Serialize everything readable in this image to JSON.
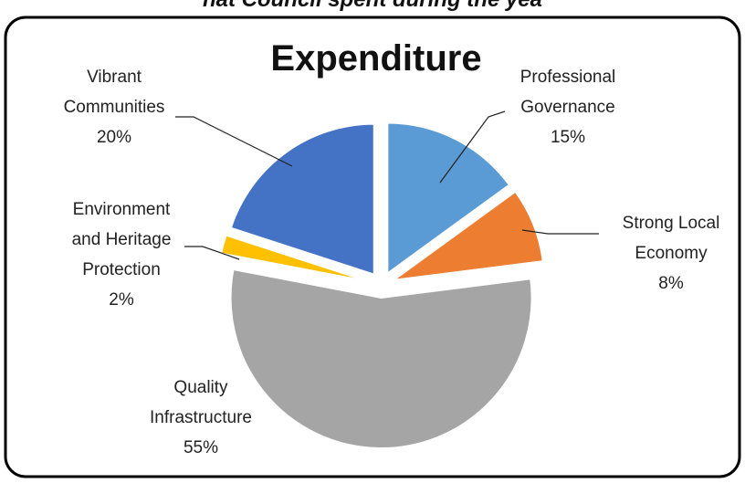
{
  "page_heading": "hat Council spent during the yea",
  "chart_data": {
    "type": "pie",
    "title": "Expenditure",
    "categories": [
      "Professional Governance",
      "Strong Local Economy",
      "Quality Infrastructure",
      "Environment and Heritage Protection",
      "Vibrant Communities"
    ],
    "values": [
      15,
      8,
      55,
      2,
      20
    ],
    "value_labels": [
      "15%",
      "8%",
      "55%",
      "2%",
      "20%"
    ],
    "colors": [
      "#5b9bd5",
      "#ed7d31",
      "#a5a5a5",
      "#ffc000",
      "#4472c4"
    ]
  }
}
